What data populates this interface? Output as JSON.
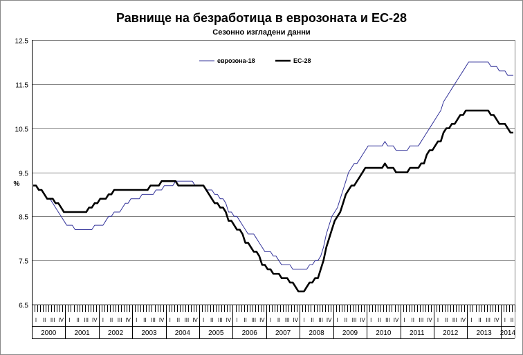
{
  "chart_data": {
    "type": "line",
    "title": "Равнище на безработица в еврозоната и ЕС-28",
    "subtitle": "Сезонно изгладени данни",
    "ylabel": "%",
    "ylim": [
      6.5,
      12.5
    ],
    "yticks": [
      "12.5",
      "11.5",
      "10.5",
      "9.5",
      "8.5",
      "7.5",
      "6.5"
    ],
    "grid": true,
    "legend_position": "top-center",
    "years": [
      "2000",
      "2001",
      "2002",
      "2003",
      "2004",
      "2005",
      "2006",
      "2007",
      "2008",
      "2009",
      "2010",
      "2011",
      "2012",
      "2013",
      "2014"
    ],
    "quarter_labels": [
      "I",
      "II",
      "III",
      "IV"
    ],
    "x_range": [
      "2000-01",
      "2014-05"
    ],
    "series": [
      {
        "name": "еврозона-18",
        "color": "#33339a",
        "style": "thin",
        "knots": [
          [
            "2000-01",
            9.2
          ],
          [
            "2000-07",
            8.9
          ],
          [
            "2001-01",
            8.3
          ],
          [
            "2001-07",
            8.15
          ],
          [
            "2002-01",
            8.3
          ],
          [
            "2002-07",
            8.6
          ],
          [
            "2003-01",
            8.9
          ],
          [
            "2003-07",
            9.0
          ],
          [
            "2004-01",
            9.2
          ],
          [
            "2004-07",
            9.3
          ],
          [
            "2005-01",
            9.2
          ],
          [
            "2005-07",
            9.0
          ],
          [
            "2006-01",
            8.5
          ],
          [
            "2006-07",
            8.1
          ],
          [
            "2007-01",
            7.7
          ],
          [
            "2007-07",
            7.4
          ],
          [
            "2008-01",
            7.25
          ],
          [
            "2008-07",
            7.5
          ],
          [
            "2009-01",
            8.6
          ],
          [
            "2009-07",
            9.6
          ],
          [
            "2010-01",
            10.05
          ],
          [
            "2010-07",
            10.15
          ],
          [
            "2011-01",
            10.0
          ],
          [
            "2011-07",
            10.1
          ],
          [
            "2012-01",
            10.7
          ],
          [
            "2012-07",
            11.4
          ],
          [
            "2013-01",
            12.0
          ],
          [
            "2013-07",
            12.0
          ],
          [
            "2014-01",
            11.8
          ],
          [
            "2014-05",
            11.65
          ]
        ]
      },
      {
        "name": "ЕС-28",
        "color": "#000000",
        "style": "thick",
        "knots": [
          [
            "2000-01",
            9.2
          ],
          [
            "2000-07",
            8.9
          ],
          [
            "2001-01",
            8.6
          ],
          [
            "2001-07",
            8.6
          ],
          [
            "2002-01",
            8.85
          ],
          [
            "2002-07",
            9.1
          ],
          [
            "2003-01",
            9.1
          ],
          [
            "2003-07",
            9.15
          ],
          [
            "2004-01",
            9.3
          ],
          [
            "2004-07",
            9.2
          ],
          [
            "2005-01",
            9.2
          ],
          [
            "2005-07",
            8.8
          ],
          [
            "2006-01",
            8.3
          ],
          [
            "2006-07",
            7.8
          ],
          [
            "2007-01",
            7.3
          ],
          [
            "2007-07",
            7.1
          ],
          [
            "2008-01",
            6.8
          ],
          [
            "2008-07",
            7.1
          ],
          [
            "2009-01",
            8.4
          ],
          [
            "2009-07",
            9.2
          ],
          [
            "2010-01",
            9.6
          ],
          [
            "2010-07",
            9.65
          ],
          [
            "2011-01",
            9.5
          ],
          [
            "2011-07",
            9.6
          ],
          [
            "2012-01",
            10.1
          ],
          [
            "2012-07",
            10.6
          ],
          [
            "2013-01",
            10.9
          ],
          [
            "2013-07",
            10.9
          ],
          [
            "2014-01",
            10.6
          ],
          [
            "2014-05",
            10.4
          ]
        ]
      }
    ]
  }
}
